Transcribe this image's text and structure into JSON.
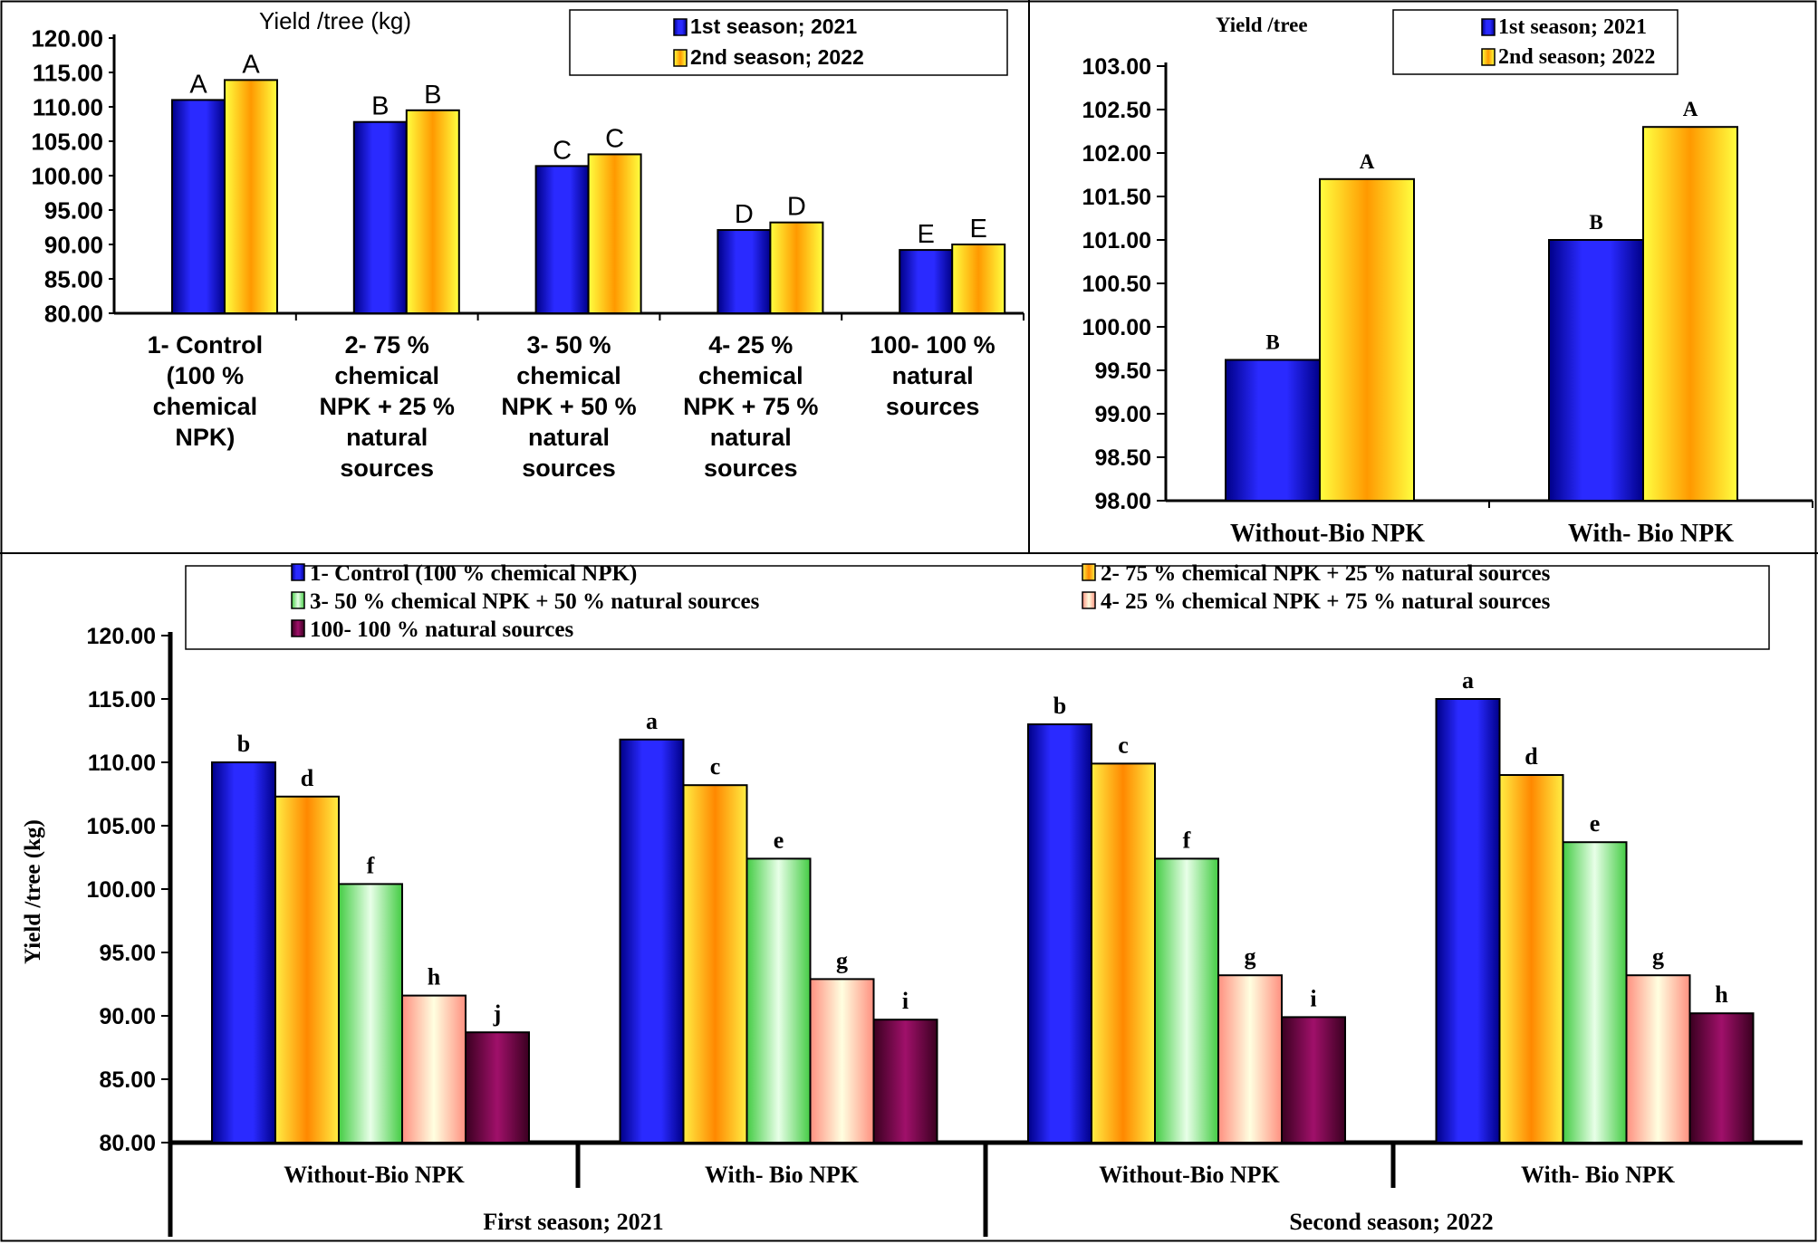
{
  "chart_data": [
    {
      "id": "panel-treatments",
      "type": "bar",
      "title": "Yield /tree (kg)",
      "xlabel": "",
      "ylabel": "",
      "ylim": [
        80,
        120
      ],
      "yticks": [
        "80.00",
        "85.00",
        "90.00",
        "95.00",
        "100.00",
        "105.00",
        "110.00",
        "115.00",
        "120.00"
      ],
      "categories": [
        [
          "1- Control",
          "(100 %",
          "chemical",
          "NPK)"
        ],
        [
          "2- 75 %",
          "chemical",
          "NPK + 25 %",
          "natural",
          "sources"
        ],
        [
          "3- 50 %",
          "chemical",
          "NPK + 50 %",
          "natural",
          "sources"
        ],
        [
          "4- 25 %",
          "chemical",
          "NPK + 75 %",
          "natural",
          "sources"
        ],
        [
          "100- 100 %",
          "natural",
          "sources"
        ]
      ],
      "series": [
        {
          "name": "1st season; 2021",
          "color": "#1010cc",
          "values": [
            111.0,
            107.8,
            101.4,
            92.1,
            89.2
          ],
          "letters": [
            "A",
            "B",
            "C",
            "D",
            "E"
          ]
        },
        {
          "name": "2nd season; 2022",
          "color": "#ffdd00",
          "values": [
            113.9,
            109.5,
            103.1,
            93.2,
            90.0
          ],
          "letters": [
            "A",
            "B",
            "C",
            "D",
            "E"
          ]
        }
      ],
      "legend": "top-right"
    },
    {
      "id": "panel-bio",
      "type": "bar",
      "title": "Yield /tree",
      "xlabel": "",
      "ylabel": "",
      "ylim": [
        98,
        103
      ],
      "yticks": [
        "98.00",
        "98.50",
        "99.00",
        "99.50",
        "100.00",
        "100.50",
        "101.00",
        "101.50",
        "102.00",
        "102.50",
        "103.00"
      ],
      "categories": [
        "Without-Bio NPK",
        "With- Bio NPK"
      ],
      "series": [
        {
          "name": "1st season; 2021",
          "color": "#1010cc",
          "values": [
            99.62,
            101.0
          ],
          "letters": [
            "B",
            "B"
          ]
        },
        {
          "name": "2nd season; 2022",
          "color": "#ffdd00",
          "values": [
            101.7,
            102.3
          ],
          "letters": [
            "A",
            "A"
          ]
        }
      ],
      "legend": "top-right"
    },
    {
      "id": "panel-interaction",
      "type": "bar",
      "title": "",
      "xlabel": "",
      "ylabel": "Yield  /tree (kg)",
      "ylim": [
        80,
        120
      ],
      "yticks": [
        "80.00",
        "85.00",
        "90.00",
        "95.00",
        "100.00",
        "105.00",
        "110.00",
        "115.00",
        "120.00"
      ],
      "categories": [
        "Without-Bio NPK",
        "With- Bio NPK",
        "Without-Bio NPK",
        "With- Bio NPK"
      ],
      "group_labels": [
        "First season; 2021",
        "Second season; 2022"
      ],
      "series": [
        {
          "name": "1- Control (100 % chemical NPK)",
          "color": "#1010cc",
          "values": [
            110.0,
            111.8,
            113.0,
            115.0
          ],
          "letters": [
            "b",
            "a",
            "b",
            "a"
          ]
        },
        {
          "name": "2- 75 % chemical NPK + 25 % natural sources",
          "color": "#ffcc00",
          "values": [
            107.3,
            108.2,
            109.9,
            109.0
          ],
          "letters": [
            "d",
            "c",
            "c",
            "d"
          ]
        },
        {
          "name": "3- 50 % chemical NPK + 50 % natural sources",
          "color": "#88ee88",
          "values": [
            100.4,
            102.4,
            102.4,
            103.7
          ],
          "letters": [
            "f",
            "e",
            "f",
            "e"
          ]
        },
        {
          "name": "4- 25 % chemical NPK + 75 % natural sources",
          "color": "#ffd8b0",
          "values": [
            91.6,
            92.9,
            93.2,
            93.2
          ],
          "letters": [
            "h",
            "g",
            "g",
            "g"
          ]
        },
        {
          "name": "100- 100 % natural sources",
          "color": "#7a0040",
          "values": [
            88.7,
            89.7,
            89.9,
            90.2
          ],
          "letters": [
            "j",
            "i",
            "i",
            "h"
          ]
        }
      ],
      "legend": "top"
    }
  ]
}
